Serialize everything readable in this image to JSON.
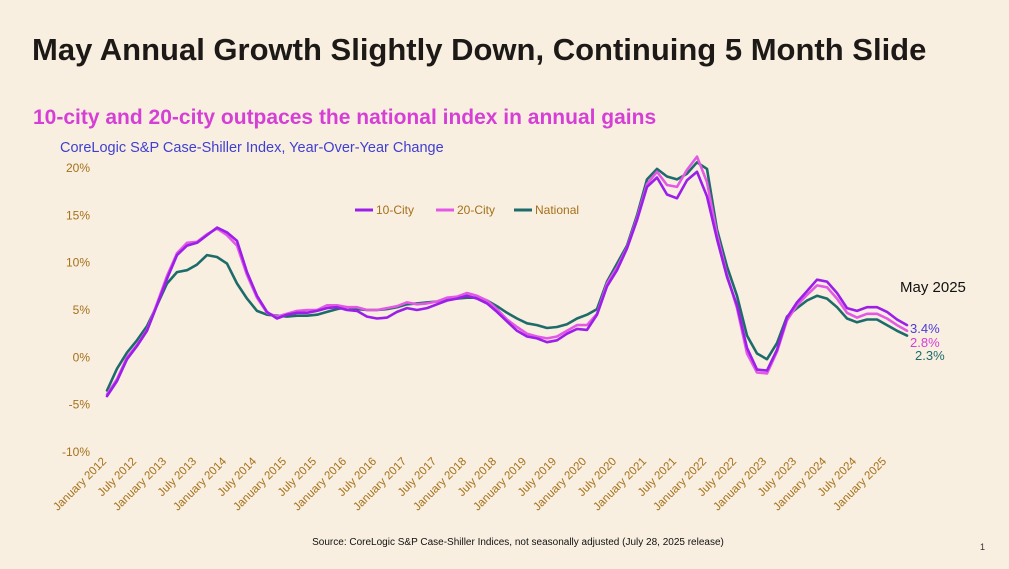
{
  "title": "May Annual Growth Slightly Down, Continuing 5 Month Slide",
  "subtitle": "10-city and 20-city outpaces the national index in annual gains",
  "page_number": "1",
  "colors": {
    "city10": "#9b1fe8",
    "city20": "#e359e6",
    "national": "#1d6b6b",
    "axis_text": "#a5701a",
    "chart_title": "#3f3fd1",
    "label10": "#4b3bd8",
    "label20": "#d43fd4",
    "labelNat": "#1d6b6b"
  },
  "chart_data": {
    "type": "line",
    "title": "CoreLogic S&P Case-Shiller Index, Year-Over-Year Change",
    "source_note": "Source: CoreLogic S&P Case-Shiller Indices, not seasonally adjusted (July 28, 2025 release)",
    "annotation": "May 2025",
    "end_labels": [
      "3.4%",
      "2.8%",
      "2.3%"
    ],
    "y_ticks": [
      {
        "v": 20,
        "label": "20%"
      },
      {
        "v": 15,
        "label": "15%"
      },
      {
        "v": 10,
        "label": "10%"
      },
      {
        "v": 5,
        "label": "5%"
      },
      {
        "v": 0,
        "label": "0%"
      },
      {
        "v": -5,
        "label": "-5%"
      },
      {
        "v": -10,
        "label": "-10%"
      }
    ],
    "ylim": [
      -10,
      20
    ],
    "x_start": 2012.0,
    "x_end": 2025.333,
    "x_ticks": [
      {
        "t": 2012.0,
        "label": "January 2012"
      },
      {
        "t": 2012.5,
        "label": "July 2012"
      },
      {
        "t": 2013.0,
        "label": "January 2013"
      },
      {
        "t": 2013.5,
        "label": "July 2013"
      },
      {
        "t": 2014.0,
        "label": "January 2014"
      },
      {
        "t": 2014.5,
        "label": "July 2014"
      },
      {
        "t": 2015.0,
        "label": "January 2015"
      },
      {
        "t": 2015.5,
        "label": "July 2015"
      },
      {
        "t": 2016.0,
        "label": "January 2016"
      },
      {
        "t": 2016.5,
        "label": "July 2016"
      },
      {
        "t": 2017.0,
        "label": "January 2017"
      },
      {
        "t": 2017.5,
        "label": "July 2017"
      },
      {
        "t": 2018.0,
        "label": "January 2018"
      },
      {
        "t": 2018.5,
        "label": "July 2018"
      },
      {
        "t": 2019.0,
        "label": "January 2019"
      },
      {
        "t": 2019.5,
        "label": "July 2019"
      },
      {
        "t": 2020.0,
        "label": "January 2020"
      },
      {
        "t": 2020.5,
        "label": "July 2020"
      },
      {
        "t": 2021.0,
        "label": "January 2021"
      },
      {
        "t": 2021.5,
        "label": "July 2021"
      },
      {
        "t": 2022.0,
        "label": "January 2022"
      },
      {
        "t": 2022.5,
        "label": "July 2022"
      },
      {
        "t": 2023.0,
        "label": "January 2023"
      },
      {
        "t": 2023.5,
        "label": "July 2023"
      },
      {
        "t": 2024.0,
        "label": "January 2024"
      },
      {
        "t": 2024.5,
        "label": "July 2024"
      },
      {
        "t": 2025.0,
        "label": "January 2025"
      }
    ],
    "legend": [
      {
        "key": "city10",
        "label": "10-City"
      },
      {
        "key": "city20",
        "label": "20-City"
      },
      {
        "key": "national",
        "label": "National"
      }
    ],
    "series": [
      {
        "name": "10-City",
        "key": "city10",
        "points": [
          [
            2012.0,
            -4.1
          ],
          [
            2012.167,
            -2.5
          ],
          [
            2012.333,
            -0.2
          ],
          [
            2012.5,
            1.2
          ],
          [
            2012.667,
            2.8
          ],
          [
            2012.833,
            5.5
          ],
          [
            2013.0,
            8.3
          ],
          [
            2013.167,
            10.8
          ],
          [
            2013.333,
            11.8
          ],
          [
            2013.5,
            12.1
          ],
          [
            2013.667,
            12.9
          ],
          [
            2013.833,
            13.7
          ],
          [
            2014.0,
            13.2
          ],
          [
            2014.167,
            12.3
          ],
          [
            2014.333,
            9.0
          ],
          [
            2014.5,
            6.5
          ],
          [
            2014.667,
            4.8
          ],
          [
            2014.833,
            4.1
          ],
          [
            2015.0,
            4.5
          ],
          [
            2015.167,
            4.7
          ],
          [
            2015.333,
            4.7
          ],
          [
            2015.5,
            4.9
          ],
          [
            2015.667,
            5.2
          ],
          [
            2015.833,
            5.3
          ],
          [
            2016.0,
            5.0
          ],
          [
            2016.167,
            4.9
          ],
          [
            2016.333,
            4.3
          ],
          [
            2016.5,
            4.1
          ],
          [
            2016.667,
            4.2
          ],
          [
            2016.833,
            4.8
          ],
          [
            2017.0,
            5.2
          ],
          [
            2017.167,
            5.0
          ],
          [
            2017.333,
            5.2
          ],
          [
            2017.5,
            5.6
          ],
          [
            2017.667,
            6.0
          ],
          [
            2017.833,
            6.2
          ],
          [
            2018.0,
            6.5
          ],
          [
            2018.167,
            6.2
          ],
          [
            2018.333,
            5.7
          ],
          [
            2018.5,
            4.8
          ],
          [
            2018.667,
            3.8
          ],
          [
            2018.833,
            2.8
          ],
          [
            2019.0,
            2.2
          ],
          [
            2019.167,
            2.0
          ],
          [
            2019.333,
            1.6
          ],
          [
            2019.5,
            1.8
          ],
          [
            2019.667,
            2.5
          ],
          [
            2019.833,
            3.0
          ],
          [
            2020.0,
            2.9
          ],
          [
            2020.167,
            4.5
          ],
          [
            2020.333,
            7.5
          ],
          [
            2020.5,
            9.2
          ],
          [
            2020.667,
            11.5
          ],
          [
            2020.833,
            14.5
          ],
          [
            2021.0,
            18.0
          ],
          [
            2021.167,
            19.0
          ],
          [
            2021.333,
            17.2
          ],
          [
            2021.5,
            16.8
          ],
          [
            2021.667,
            18.7
          ],
          [
            2021.833,
            19.6
          ],
          [
            2022.0,
            17.0
          ],
          [
            2022.167,
            12.5
          ],
          [
            2022.333,
            8.5
          ],
          [
            2022.5,
            5.5
          ],
          [
            2022.667,
            1.0
          ],
          [
            2022.833,
            -1.3
          ],
          [
            2023.0,
            -1.4
          ],
          [
            2023.167,
            0.8
          ],
          [
            2023.333,
            4.2
          ],
          [
            2023.5,
            5.8
          ],
          [
            2023.667,
            7.0
          ],
          [
            2023.833,
            8.2
          ],
          [
            2024.0,
            8.0
          ],
          [
            2024.167,
            6.8
          ],
          [
            2024.333,
            5.2
          ],
          [
            2024.5,
            4.9
          ],
          [
            2024.667,
            5.3
          ],
          [
            2024.833,
            5.3
          ],
          [
            2025.0,
            4.8
          ],
          [
            2025.167,
            4.0
          ],
          [
            2025.333,
            3.4
          ]
        ]
      },
      {
        "name": "20-City",
        "key": "city20",
        "points": [
          [
            2012.0,
            -3.9
          ],
          [
            2012.167,
            -2.3
          ],
          [
            2012.333,
            0.0
          ],
          [
            2012.5,
            1.3
          ],
          [
            2012.667,
            2.9
          ],
          [
            2012.833,
            5.7
          ],
          [
            2013.0,
            8.6
          ],
          [
            2013.167,
            11.0
          ],
          [
            2013.333,
            12.1
          ],
          [
            2013.5,
            12.2
          ],
          [
            2013.667,
            13.0
          ],
          [
            2013.833,
            13.6
          ],
          [
            2014.0,
            12.9
          ],
          [
            2014.167,
            11.8
          ],
          [
            2014.333,
            8.7
          ],
          [
            2014.5,
            6.3
          ],
          [
            2014.667,
            4.7
          ],
          [
            2014.833,
            4.3
          ],
          [
            2015.0,
            4.6
          ],
          [
            2015.167,
            4.9
          ],
          [
            2015.333,
            5.0
          ],
          [
            2015.5,
            5.0
          ],
          [
            2015.667,
            5.5
          ],
          [
            2015.833,
            5.5
          ],
          [
            2016.0,
            5.3
          ],
          [
            2016.167,
            5.3
          ],
          [
            2016.333,
            5.0
          ],
          [
            2016.5,
            5.0
          ],
          [
            2016.667,
            5.2
          ],
          [
            2016.833,
            5.4
          ],
          [
            2017.0,
            5.8
          ],
          [
            2017.167,
            5.6
          ],
          [
            2017.333,
            5.7
          ],
          [
            2017.5,
            5.9
          ],
          [
            2017.667,
            6.3
          ],
          [
            2017.833,
            6.4
          ],
          [
            2018.0,
            6.8
          ],
          [
            2018.167,
            6.5
          ],
          [
            2018.333,
            6.0
          ],
          [
            2018.5,
            5.1
          ],
          [
            2018.667,
            4.0
          ],
          [
            2018.833,
            3.2
          ],
          [
            2019.0,
            2.5
          ],
          [
            2019.167,
            2.2
          ],
          [
            2019.333,
            2.0
          ],
          [
            2019.5,
            2.2
          ],
          [
            2019.667,
            2.8
          ],
          [
            2019.833,
            3.4
          ],
          [
            2020.0,
            3.4
          ],
          [
            2020.167,
            4.6
          ],
          [
            2020.333,
            7.8
          ],
          [
            2020.5,
            9.5
          ],
          [
            2020.667,
            11.6
          ],
          [
            2020.833,
            14.7
          ],
          [
            2021.0,
            18.3
          ],
          [
            2021.167,
            19.6
          ],
          [
            2021.333,
            18.2
          ],
          [
            2021.5,
            18.0
          ],
          [
            2021.667,
            19.8
          ],
          [
            2021.833,
            21.2
          ],
          [
            2022.0,
            18.5
          ],
          [
            2022.167,
            13.0
          ],
          [
            2022.333,
            8.7
          ],
          [
            2022.5,
            5.2
          ],
          [
            2022.667,
            0.4
          ],
          [
            2022.833,
            -1.6
          ],
          [
            2023.0,
            -1.7
          ],
          [
            2023.167,
            0.6
          ],
          [
            2023.333,
            3.9
          ],
          [
            2023.5,
            5.5
          ],
          [
            2023.667,
            6.6
          ],
          [
            2023.833,
            7.6
          ],
          [
            2024.0,
            7.4
          ],
          [
            2024.167,
            6.2
          ],
          [
            2024.333,
            4.7
          ],
          [
            2024.5,
            4.2
          ],
          [
            2024.667,
            4.6
          ],
          [
            2024.833,
            4.6
          ],
          [
            2025.0,
            4.1
          ],
          [
            2025.167,
            3.4
          ],
          [
            2025.333,
            2.8
          ]
        ]
      },
      {
        "name": "National",
        "key": "national",
        "points": [
          [
            2012.0,
            -3.5
          ],
          [
            2012.167,
            -1.2
          ],
          [
            2012.333,
            0.5
          ],
          [
            2012.5,
            1.8
          ],
          [
            2012.667,
            3.3
          ],
          [
            2012.833,
            5.5
          ],
          [
            2013.0,
            7.8
          ],
          [
            2013.167,
            9.0
          ],
          [
            2013.333,
            9.2
          ],
          [
            2013.5,
            9.8
          ],
          [
            2013.667,
            10.8
          ],
          [
            2013.833,
            10.6
          ],
          [
            2014.0,
            9.9
          ],
          [
            2014.167,
            7.8
          ],
          [
            2014.333,
            6.2
          ],
          [
            2014.5,
            4.9
          ],
          [
            2014.667,
            4.5
          ],
          [
            2014.833,
            4.4
          ],
          [
            2015.0,
            4.3
          ],
          [
            2015.167,
            4.4
          ],
          [
            2015.333,
            4.4
          ],
          [
            2015.5,
            4.5
          ],
          [
            2015.667,
            4.8
          ],
          [
            2015.833,
            5.1
          ],
          [
            2016.0,
            5.3
          ],
          [
            2016.167,
            5.1
          ],
          [
            2016.333,
            5.0
          ],
          [
            2016.5,
            5.0
          ],
          [
            2016.667,
            5.1
          ],
          [
            2016.833,
            5.3
          ],
          [
            2017.0,
            5.6
          ],
          [
            2017.167,
            5.7
          ],
          [
            2017.333,
            5.8
          ],
          [
            2017.5,
            5.9
          ],
          [
            2017.667,
            6.2
          ],
          [
            2017.833,
            6.2
          ],
          [
            2018.0,
            6.3
          ],
          [
            2018.167,
            6.3
          ],
          [
            2018.333,
            6.0
          ],
          [
            2018.5,
            5.4
          ],
          [
            2018.667,
            4.7
          ],
          [
            2018.833,
            4.1
          ],
          [
            2019.0,
            3.6
          ],
          [
            2019.167,
            3.4
          ],
          [
            2019.333,
            3.1
          ],
          [
            2019.5,
            3.2
          ],
          [
            2019.667,
            3.5
          ],
          [
            2019.833,
            4.1
          ],
          [
            2020.0,
            4.5
          ],
          [
            2020.167,
            5.1
          ],
          [
            2020.333,
            8.0
          ],
          [
            2020.5,
            9.9
          ],
          [
            2020.667,
            11.8
          ],
          [
            2020.833,
            15.0
          ],
          [
            2021.0,
            18.8
          ],
          [
            2021.167,
            19.9
          ],
          [
            2021.333,
            19.1
          ],
          [
            2021.5,
            18.8
          ],
          [
            2021.667,
            19.4
          ],
          [
            2021.833,
            20.6
          ],
          [
            2022.0,
            19.9
          ],
          [
            2022.167,
            13.5
          ],
          [
            2022.333,
            9.6
          ],
          [
            2022.5,
            6.5
          ],
          [
            2022.667,
            2.3
          ],
          [
            2022.833,
            0.4
          ],
          [
            2023.0,
            -0.2
          ],
          [
            2023.167,
            1.5
          ],
          [
            2023.333,
            4.3
          ],
          [
            2023.5,
            5.2
          ],
          [
            2023.667,
            6.0
          ],
          [
            2023.833,
            6.5
          ],
          [
            2024.0,
            6.2
          ],
          [
            2024.167,
            5.3
          ],
          [
            2024.333,
            4.1
          ],
          [
            2024.5,
            3.7
          ],
          [
            2024.667,
            4.0
          ],
          [
            2024.833,
            4.0
          ],
          [
            2025.0,
            3.4
          ],
          [
            2025.167,
            2.8
          ],
          [
            2025.333,
            2.3
          ]
        ]
      }
    ]
  }
}
